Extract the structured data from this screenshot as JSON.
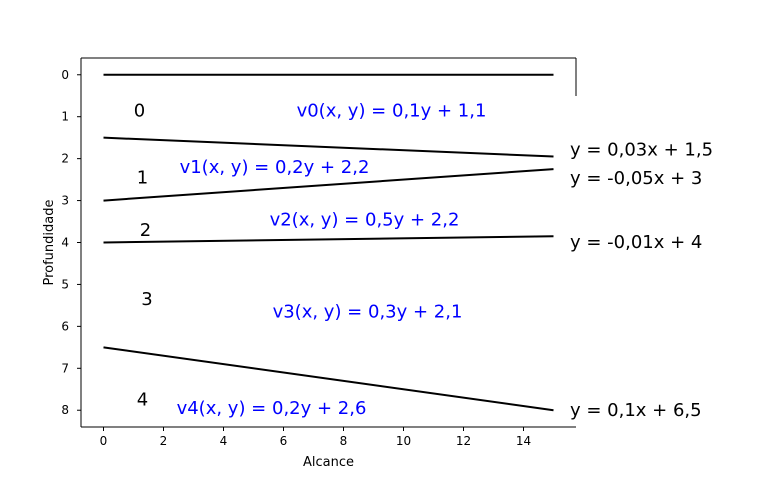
{
  "chart_data": {
    "type": "line",
    "title": "",
    "xlabel": "Alcance",
    "ylabel": "Profundidade",
    "xlim": [
      -0.75,
      15.75
    ],
    "ylim": [
      8.4,
      -0.4
    ],
    "y_inverted": true,
    "grid": false,
    "x_ticks": [
      0,
      2,
      4,
      6,
      8,
      10,
      12,
      14
    ],
    "y_ticks": [
      0,
      1,
      2,
      3,
      4,
      5,
      6,
      7,
      8
    ],
    "lines_color": "#000000",
    "series": [
      {
        "x": [
          0,
          15
        ],
        "y": [
          0,
          0
        ]
      },
      {
        "x": [
          0,
          15
        ],
        "y": [
          1.5,
          1.95
        ],
        "label": "y = 0,03x + 1,5"
      },
      {
        "x": [
          0,
          15
        ],
        "y": [
          3,
          2.25
        ],
        "label": "y = -0,05x + 3"
      },
      {
        "x": [
          0,
          15
        ],
        "y": [
          4,
          3.85
        ],
        "label": "y = -0,01x + 4"
      },
      {
        "x": [
          0,
          15
        ],
        "y": [
          6.5,
          8
        ],
        "label": "y = 0,1x + 6,5"
      }
    ],
    "annotations": {
      "layers": [
        {
          "text": "0",
          "x": 1.2,
          "y": 0.85
        },
        {
          "text": "1",
          "x": 1.3,
          "y": 2.45
        },
        {
          "text": "2",
          "x": 1.4,
          "y": 3.7
        },
        {
          "text": "3",
          "x": 1.45,
          "y": 5.35
        },
        {
          "text": "4",
          "x": 1.3,
          "y": 7.75
        }
      ],
      "velocities": [
        {
          "text": "v0(x, y) = 0,1y + 1,1",
          "x": 9.6,
          "y": 0.85
        },
        {
          "text": "v1(x, y) = 0,2y + 2,2",
          "x": 5.7,
          "y": 2.2
        },
        {
          "text": "v2(x, y) = 0,5y + 2,2",
          "x": 8.7,
          "y": 3.45
        },
        {
          "text": "v3(x, y) = 0,3y + 2,1",
          "x": 8.8,
          "y": 5.65
        },
        {
          "text": "v4(x, y) = 0,2y + 2,6",
          "x": 5.6,
          "y": 7.95
        }
      ],
      "equation_color": "#000000",
      "velocity_color": "#0000ff"
    }
  }
}
